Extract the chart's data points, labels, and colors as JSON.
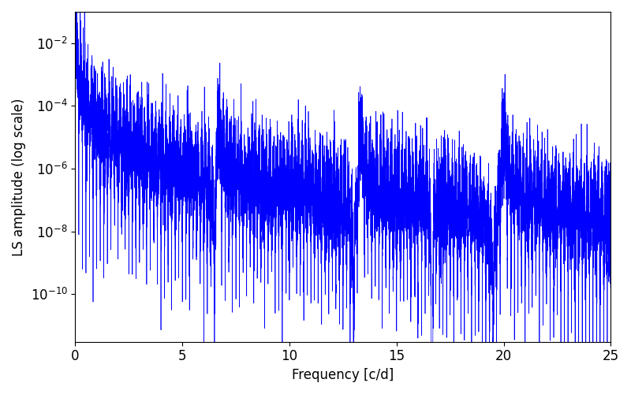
{
  "xlabel": "Frequency [c/d]",
  "ylabel": "LS amplitude (log scale)",
  "line_color": "#0000ff",
  "xlim": [
    0,
    25
  ],
  "ylim": [
    3e-12,
    0.1
  ],
  "freq_max": 25.0,
  "n_points": 12000,
  "figsize": [
    8.0,
    5.0
  ],
  "dpi": 100,
  "background_color": "#ffffff",
  "tick_labelsize": 12,
  "axis_labelsize": 12,
  "linewidth": 0.5,
  "noise_seed": 42,
  "xticks": [
    0,
    5,
    10,
    15,
    20,
    25
  ],
  "base_amplitude": 0.025,
  "deep_null_freq": 16.65
}
